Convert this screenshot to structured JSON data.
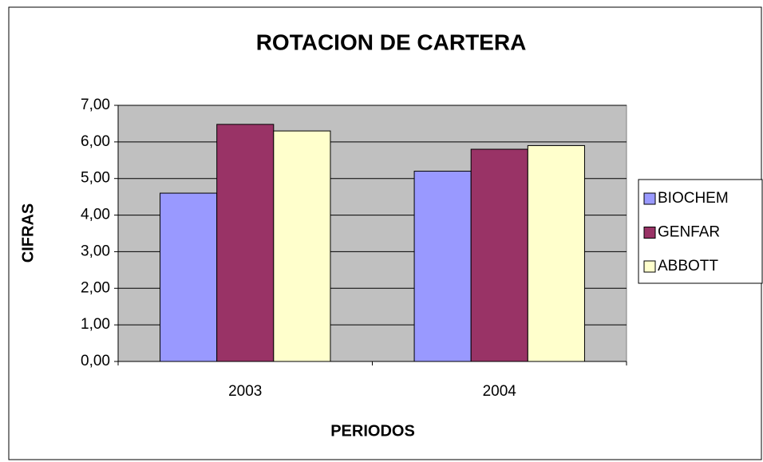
{
  "chart_data": {
    "type": "bar",
    "title": "ROTACION DE CARTERA",
    "x_label": "PERIODOS",
    "y_label": "CIFRAS",
    "categories": [
      "2003",
      "2004"
    ],
    "series": [
      {
        "name": "BIOCHEM",
        "color": "#9999ff",
        "values": [
          4.6,
          5.2
        ]
      },
      {
        "name": "GENFAR",
        "color": "#993366",
        "values": [
          6.48,
          5.8
        ]
      },
      {
        "name": "ABBOTT",
        "color": "#ffffcc",
        "values": [
          6.3,
          5.9
        ]
      }
    ],
    "ylim": [
      0,
      7
    ],
    "yticks": [
      {
        "value": 0,
        "label": "0,00"
      },
      {
        "value": 1,
        "label": "1,00"
      },
      {
        "value": 2,
        "label": "2,00"
      },
      {
        "value": 3,
        "label": "3,00"
      },
      {
        "value": 4,
        "label": "4,00"
      },
      {
        "value": 5,
        "label": "5,00"
      },
      {
        "value": 6,
        "label": "6,00"
      },
      {
        "value": 7,
        "label": "7,00"
      }
    ],
    "grid": true,
    "legend": "right",
    "plot_background": "#c0c0c0"
  }
}
